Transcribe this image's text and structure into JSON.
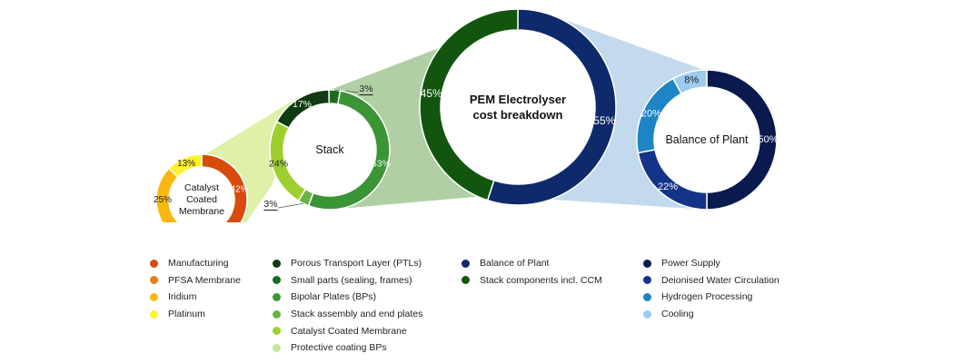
{
  "chart_data": [
    {
      "type": "pie",
      "variant": "donut",
      "title": "Catalyst Coated Membrane",
      "title_lines": [
        "Catalyst",
        "Coated",
        "Membrane"
      ],
      "categories": [
        "Manufacturing",
        "PFSA Membrane",
        "Iridium",
        "Platinum"
      ],
      "values": [
        42,
        21,
        25,
        13
      ],
      "value_labels": [
        "42%",
        "21%",
        "25%",
        "13%"
      ],
      "start_angle_deg": 0,
      "colors": [
        "#d84b0c",
        "#f07c16",
        "#fab70f",
        "#fff12a"
      ]
    },
    {
      "type": "pie",
      "variant": "donut",
      "title": "Stack",
      "categories": [
        "Porous Transport Layer (PTLs)",
        "Small parts (sealing, frames)",
        "Bipolar Plates (BPs)",
        "Stack assembly and end plates",
        "Catalyst Coated Membrane",
        "Protective coating BPs"
      ],
      "values": [
        17,
        3,
        53,
        3,
        24,
        0
      ],
      "value_labels": [
        "17%",
        "3%",
        "53%",
        "3%",
        "24%",
        ""
      ],
      "start_angle_deg": -62,
      "colors": [
        "#0f3a12",
        "#1d6a1f",
        "#3b9436",
        "#69b344",
        "#9fcf2e",
        "#c7e69a"
      ]
    },
    {
      "type": "pie",
      "variant": "donut",
      "title": "PEM Electrolyser cost breakdown",
      "title_lines": [
        "PEM Electrolyser",
        "cost breakdown"
      ],
      "categories": [
        "Balance of Plant",
        "Stack components incl. CCM"
      ],
      "values": [
        55,
        45
      ],
      "value_labels": [
        "55%",
        "45%"
      ],
      "start_angle_deg": 0,
      "colors": [
        "#0f2a6b",
        "#12550f"
      ]
    },
    {
      "type": "pie",
      "variant": "donut",
      "title": "Balance of Plant",
      "categories": [
        "Power Supply",
        "Deionised Water Circulation",
        "Hydrogen Processing",
        "Cooling"
      ],
      "values": [
        50,
        22,
        20,
        8
      ],
      "value_labels": [
        "50%",
        "22%",
        "20%",
        "8%"
      ],
      "start_angle_deg": 0,
      "colors": [
        "#0a1a4e",
        "#143489",
        "#1d84c6",
        "#9ccbef"
      ]
    }
  ],
  "connector_colors": [
    "#dff0a9",
    "#b1cfa4",
    "#c2d9ee"
  ],
  "legend": [
    {
      "items": [
        {
          "label": "Manufacturing",
          "color": "#d84b0c"
        },
        {
          "label": "PFSA Membrane",
          "color": "#f07c16"
        },
        {
          "label": "Iridium",
          "color": "#fab70f"
        },
        {
          "label": "Platinum",
          "color": "#fff12a"
        }
      ]
    },
    {
      "items": [
        {
          "label": "Porous Transport Layer (PTLs)",
          "color": "#0f3a12"
        },
        {
          "label": "Small parts (sealing, frames)",
          "color": "#1d6a1f"
        },
        {
          "label": "Bipolar Plates (BPs)",
          "color": "#3b9436"
        },
        {
          "label": "Stack assembly and end plates",
          "color": "#69b344"
        },
        {
          "label": "Catalyst Coated Membrane",
          "color": "#9fcf2e"
        },
        {
          "label": "Protective coating BPs",
          "color": "#c7e69a"
        }
      ]
    },
    {
      "items": [
        {
          "label": "Balance of Plant",
          "color": "#0f2a6b"
        },
        {
          "label": "Stack components incl. CCM",
          "color": "#12550f"
        }
      ]
    },
    {
      "items": [
        {
          "label": "Power Supply",
          "color": "#0a1a4e"
        },
        {
          "label": "Deionised Water Circulation",
          "color": "#143489"
        },
        {
          "label": "Hydrogen Processing",
          "color": "#1d84c6"
        },
        {
          "label": "Cooling",
          "color": "#9ccbef"
        }
      ]
    }
  ]
}
